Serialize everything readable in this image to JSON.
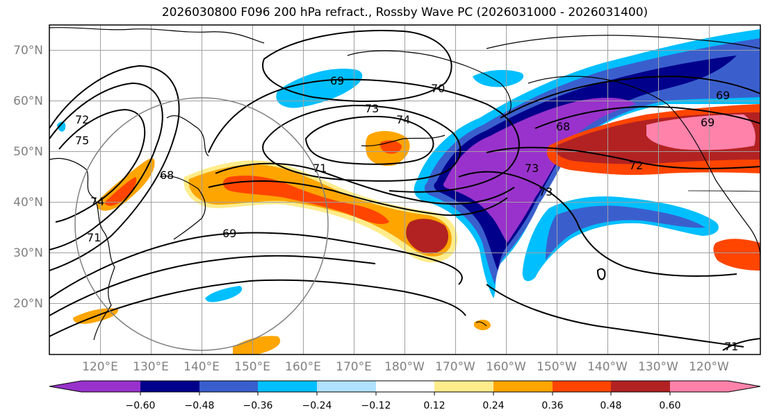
{
  "title": "2026030800 F096 200 hPa refract., Rossby Wave PC (2026031000 - 2026031400)",
  "lat_labels": [
    "70°N",
    "60°N",
    "50°N",
    "40°N",
    "30°N",
    "20°N"
  ],
  "lon_labels": [
    "120°E",
    "130°E",
    "140°E",
    "150°E",
    "160°E",
    "170°E",
    "180°W",
    "170°W",
    "160°W",
    "150°W",
    "140°W",
    "130°W",
    "120°W"
  ],
  "colorbar": {
    "ticks": [
      "−0.60",
      "−0.48",
      "−0.36",
      "−0.24",
      "−0.12",
      "0.12",
      "0.24",
      "0.36",
      "0.48",
      "0.60"
    ],
    "colors": [
      "#9932CC",
      "#00008B",
      "#3A5FCD",
      "#00BFFF",
      "#B0E2FF",
      "#FFFFFF",
      "#FFEC8B",
      "#FFA500",
      "#FF4500",
      "#B22222",
      "#FF82AB"
    ]
  },
  "contour_labels": [
    "72",
    "75",
    "71",
    "68",
    "74",
    "69",
    "73",
    "70",
    "73",
    "74",
    "71",
    "69",
    "73",
    "68",
    "72",
    "69",
    "69",
    "71"
  ],
  "colors": {
    "grid": "#A0A0A0",
    "coast": "#000000",
    "contour": "#000000"
  }
}
